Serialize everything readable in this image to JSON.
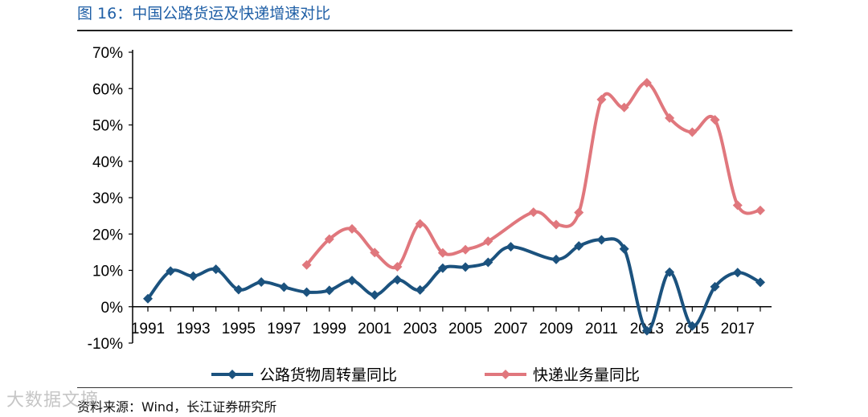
{
  "figure": {
    "title": "图 16：中国公路货运及快递增速对比",
    "source": "资料来源：Wind，长江证券研究所",
    "watermark": "大数据文摘"
  },
  "chart_data": {
    "type": "line",
    "title": "",
    "xlabel": "",
    "ylabel": "",
    "x": [
      1991,
      1992,
      1993,
      1994,
      1995,
      1996,
      1997,
      1998,
      1999,
      2000,
      2001,
      2002,
      2003,
      2004,
      2005,
      2006,
      2007,
      2008,
      2009,
      2010,
      2011,
      2012,
      2013,
      2014,
      2015,
      2016,
      2017,
      2018
    ],
    "x_tick_labels": [
      "1991",
      "1993",
      "1995",
      "1997",
      "1999",
      "2001",
      "2003",
      "2005",
      "2007",
      "2009",
      "2011",
      "2013",
      "2015",
      "2017"
    ],
    "y_tick_labels": [
      "-10%",
      "0%",
      "10%",
      "20%",
      "30%",
      "40%",
      "50%",
      "60%",
      "70%"
    ],
    "ylim": [
      -10,
      70
    ],
    "y_unit": "%",
    "grid": false,
    "legend_position": "bottom",
    "series": [
      {
        "name": "公路货物周转量同比",
        "color": "#1b527e",
        "values": [
          2.2,
          9.8,
          8.4,
          10.3,
          4.7,
          6.8,
          5.4,
          4.0,
          4.5,
          7.2,
          3.2,
          7.4,
          4.6,
          10.6,
          10.9,
          12.2,
          16.5,
          null,
          13.0,
          16.7,
          18.4,
          15.9,
          -6.6,
          9.5,
          -5.3,
          5.5,
          9.4,
          6.7
        ]
      },
      {
        "name": "快递业务量同比",
        "color": "#e0777d",
        "values": [
          null,
          null,
          null,
          null,
          null,
          null,
          null,
          11.5,
          18.6,
          21.4,
          14.9,
          11.0,
          22.8,
          14.8,
          15.7,
          18.0,
          null,
          26.0,
          22.6,
          25.9,
          57.0,
          54.8,
          61.6,
          51.9,
          48.0,
          51.4,
          27.9,
          26.5
        ]
      }
    ]
  }
}
